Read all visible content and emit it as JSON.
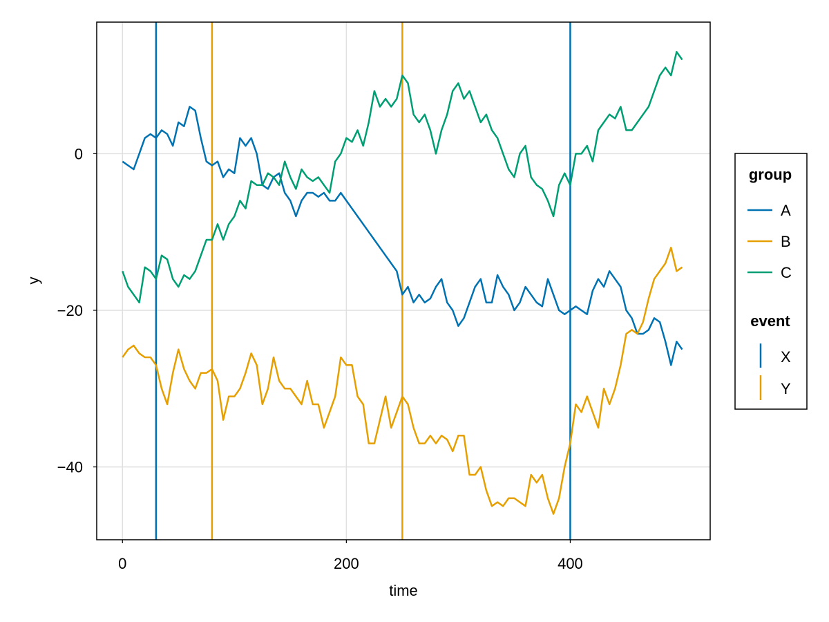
{
  "chart_data": {
    "type": "line",
    "title": "",
    "xlabel": "time",
    "ylabel": "y",
    "xlim": [
      -23,
      525
    ],
    "ylim": [
      -49.3,
      16.8
    ],
    "x_ticks": [
      0,
      200,
      400
    ],
    "x_tick_labels": [
      "0",
      "200",
      "400"
    ],
    "y_ticks": [
      0,
      -20,
      -40
    ],
    "y_tick_labels": [
      "0",
      "−20",
      "−40"
    ],
    "grid": true,
    "legend_position": "right",
    "colors": {
      "A": "#0072b2",
      "B": "#e69f00",
      "C": "#009e73"
    },
    "legend": {
      "group_title": "group",
      "group_entries": [
        {
          "label": "A",
          "color": "#0072b2"
        },
        {
          "label": "B",
          "color": "#e69f00"
        },
        {
          "label": "C",
          "color": "#009e73"
        }
      ],
      "event_title": "event",
      "event_entries": [
        {
          "label": "X",
          "color": "#0072b2"
        },
        {
          "label": "Y",
          "color": "#e69f00"
        }
      ]
    },
    "events": [
      {
        "x": 30,
        "event": "X"
      },
      {
        "x": 80,
        "event": "Y"
      },
      {
        "x": 250,
        "event": "Y"
      },
      {
        "x": 400,
        "event": "X"
      }
    ],
    "series": [
      {
        "name": "A",
        "x": [
          0,
          5,
          10,
          15,
          20,
          25,
          30,
          35,
          40,
          45,
          50,
          55,
          60,
          65,
          70,
          75,
          80,
          85,
          90,
          95,
          100,
          105,
          110,
          115,
          120,
          125,
          130,
          135,
          140,
          145,
          150,
          155,
          160,
          165,
          170,
          175,
          180,
          185,
          190,
          195,
          200,
          205,
          210,
          215,
          220,
          225,
          230,
          235,
          240,
          245,
          250,
          255,
          260,
          265,
          270,
          275,
          280,
          285,
          290,
          295,
          300,
          305,
          310,
          315,
          320,
          325,
          330,
          335,
          340,
          345,
          350,
          355,
          360,
          365,
          370,
          375,
          380,
          385,
          390,
          395,
          400,
          405,
          410,
          415,
          420,
          425,
          430,
          435,
          440,
          445,
          450,
          455,
          460,
          465,
          470,
          475,
          480,
          485,
          490,
          495,
          500
        ],
        "y": [
          -1,
          -1.5,
          -2,
          0,
          2,
          2.5,
          2,
          3,
          2.5,
          1,
          4,
          3.5,
          6,
          5.5,
          2,
          -1,
          -1.5,
          -1,
          -3,
          -2,
          -2.5,
          2,
          1,
          2,
          0,
          -4,
          -4.5,
          -3,
          -2.5,
          -5,
          -6,
          -8,
          -6,
          -5,
          -5,
          -5.5,
          -5,
          -6,
          -6,
          -5,
          -6,
          -7,
          -8,
          -9,
          -10,
          -11,
          -12,
          -13,
          -14,
          -15,
          -18,
          -17,
          -19,
          -18,
          -19,
          -18.5,
          -17,
          -16,
          -19,
          -20,
          -22,
          -21,
          -19,
          -17,
          -16,
          -19,
          -19,
          -15.5,
          -17,
          -18,
          -20,
          -19,
          -17,
          -18,
          -19,
          -19.5,
          -16,
          -18,
          -20,
          -20.5,
          -20,
          -19.5,
          -20,
          -20.5,
          -17.5,
          -16,
          -17,
          -15,
          -16,
          -17,
          -20,
          -21,
          -23,
          -23,
          -22.5,
          -21,
          -21.5,
          -24,
          -27,
          -24,
          -25
        ]
      },
      {
        "name": "B",
        "x": [
          0,
          5,
          10,
          15,
          20,
          25,
          30,
          35,
          40,
          45,
          50,
          55,
          60,
          65,
          70,
          75,
          80,
          85,
          90,
          95,
          100,
          105,
          110,
          115,
          120,
          125,
          130,
          135,
          140,
          145,
          150,
          155,
          160,
          165,
          170,
          175,
          180,
          185,
          190,
          195,
          200,
          205,
          210,
          215,
          220,
          225,
          230,
          235,
          240,
          245,
          250,
          255,
          260,
          265,
          270,
          275,
          280,
          285,
          290,
          295,
          300,
          305,
          310,
          315,
          320,
          325,
          330,
          335,
          340,
          345,
          350,
          355,
          360,
          365,
          370,
          375,
          380,
          385,
          390,
          395,
          400,
          405,
          410,
          415,
          420,
          425,
          430,
          435,
          440,
          445,
          450,
          455,
          460,
          465,
          470,
          475,
          480,
          485,
          490,
          495,
          500
        ],
        "y": [
          -26,
          -25,
          -24.5,
          -25.5,
          -26,
          -26,
          -27,
          -30,
          -32,
          -28,
          -25,
          -27.5,
          -29,
          -30,
          -28,
          -28,
          -27.5,
          -29,
          -34,
          -31,
          -31,
          -30,
          -28,
          -25.5,
          -27,
          -32,
          -30,
          -26,
          -29,
          -30,
          -30,
          -31,
          -32,
          -29,
          -32,
          -32,
          -35,
          -33,
          -31,
          -26,
          -27,
          -27,
          -31,
          -32,
          -37,
          -37,
          -34,
          -31,
          -35,
          -33,
          -31,
          -32,
          -35,
          -37,
          -37,
          -36,
          -37,
          -36,
          -36.5,
          -38,
          -36,
          -36,
          -41,
          -41,
          -40,
          -43,
          -45,
          -44.5,
          -45,
          -44,
          -44,
          -44.5,
          -45,
          -41,
          -42,
          -41,
          -44,
          -46,
          -44,
          -40,
          -37,
          -32,
          -33,
          -31,
          -33,
          -35,
          -30,
          -32,
          -30,
          -27,
          -23,
          -22.5,
          -23,
          -21.5,
          -18.5,
          -16,
          -15,
          -14,
          -12,
          -15,
          -14.5
        ]
      },
      {
        "name": "C",
        "x": [
          0,
          5,
          10,
          15,
          20,
          25,
          30,
          35,
          40,
          45,
          50,
          55,
          60,
          65,
          70,
          75,
          80,
          85,
          90,
          95,
          100,
          105,
          110,
          115,
          120,
          125,
          130,
          135,
          140,
          145,
          150,
          155,
          160,
          165,
          170,
          175,
          180,
          185,
          190,
          195,
          200,
          205,
          210,
          215,
          220,
          225,
          230,
          235,
          240,
          245,
          250,
          255,
          260,
          265,
          270,
          275,
          280,
          285,
          290,
          295,
          300,
          305,
          310,
          315,
          320,
          325,
          330,
          335,
          340,
          345,
          350,
          355,
          360,
          365,
          370,
          375,
          380,
          385,
          390,
          395,
          400,
          405,
          410,
          415,
          420,
          425,
          430,
          435,
          440,
          445,
          450,
          455,
          460,
          465,
          470,
          475,
          480,
          485,
          490,
          495,
          500
        ],
        "y": [
          -15,
          -17,
          -18,
          -19,
          -14.5,
          -15,
          -16,
          -13,
          -13.5,
          -16,
          -17,
          -15.5,
          -16,
          -15,
          -13,
          -11,
          -11,
          -9,
          -11,
          -9,
          -8,
          -6,
          -7,
          -3.5,
          -4,
          -4,
          -2.5,
          -3,
          -4,
          -1,
          -3,
          -4.5,
          -2,
          -3,
          -3.5,
          -3,
          -4,
          -5,
          -1,
          0,
          2,
          1.5,
          3,
          1,
          4,
          8,
          6,
          7,
          6,
          7,
          10,
          9,
          5,
          4,
          5,
          3,
          0,
          3,
          5,
          8,
          9,
          7,
          8,
          6,
          4,
          5,
          3,
          2,
          0,
          -2,
          -3,
          0,
          1,
          -3,
          -4,
          -4.5,
          -6,
          -8,
          -4,
          -2.5,
          -4,
          0,
          0,
          1,
          -1,
          3,
          4,
          5,
          4.5,
          6,
          3,
          3,
          4,
          5,
          6,
          8,
          10,
          11,
          10,
          13,
          12
        ]
      }
    ]
  }
}
